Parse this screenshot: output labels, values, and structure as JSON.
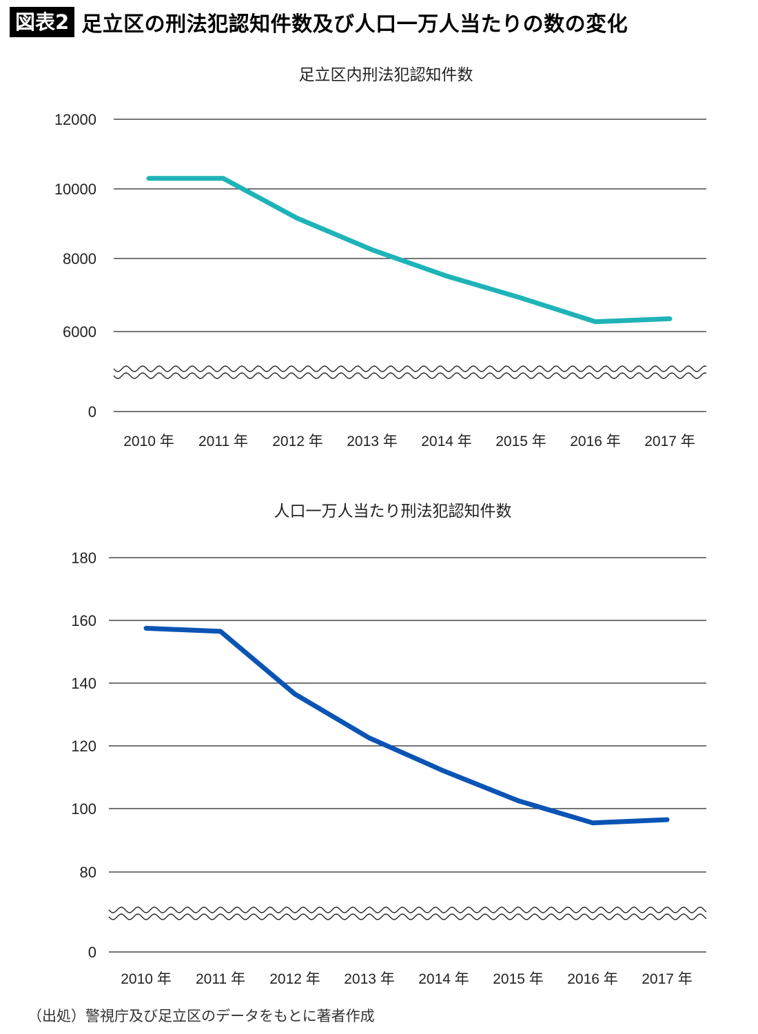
{
  "header": {
    "badge": "図表2",
    "title": "足立区の刑法犯認知件数及び人口一万人当たりの数の変化"
  },
  "source": "（出処）警視庁及び足立区のデータをもとに著者作成",
  "colors": {
    "series1": "#1fb3b8",
    "series2": "#0a54b4",
    "grid": "#222222"
  },
  "chart_data": [
    {
      "type": "line",
      "title": "足立区内刑法犯認知件数",
      "categories": [
        "2010 年",
        "2011 年",
        "2012 年",
        "2013 年",
        "2014 年",
        "2015 年",
        "2016 年",
        "2017 年"
      ],
      "series": [
        {
          "values": [
            10300,
            10300,
            9150,
            8250,
            7520,
            6920,
            6270,
            6350
          ]
        }
      ],
      "yticks": [
        0,
        6000,
        8000,
        10000,
        12000
      ],
      "axis_break": [
        0,
        6000
      ],
      "ylim": [
        0,
        12000
      ],
      "grid": true,
      "xlabel": "",
      "ylabel": ""
    },
    {
      "type": "line",
      "title": "人口一万人当たり刑法犯認知件数",
      "categories": [
        "2010 年",
        "2011 年",
        "2012 年",
        "2013 年",
        "2014 年",
        "2015 年",
        "2016 年",
        "2017 年"
      ],
      "series": [
        {
          "values": [
            157.5,
            156.5,
            136.5,
            122.5,
            112,
            102.5,
            95.5,
            96.5
          ]
        }
      ],
      "yticks": [
        0,
        80,
        100,
        120,
        140,
        160,
        180
      ],
      "axis_break": [
        0,
        80
      ],
      "ylim": [
        0,
        180
      ],
      "grid": true,
      "xlabel": "",
      "ylabel": ""
    }
  ]
}
